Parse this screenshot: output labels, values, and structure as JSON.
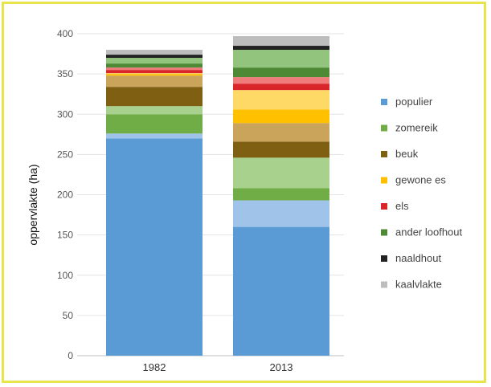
{
  "chart_data": {
    "type": "bar",
    "stacked": true,
    "ylabel": "oppervlakte (ha)",
    "ylim": [
      0,
      400
    ],
    "yticks": [
      0,
      50,
      100,
      150,
      200,
      250,
      300,
      350,
      400
    ],
    "categories": [
      "1982",
      "2013"
    ],
    "grid": true,
    "legend_position": "right",
    "series": [
      {
        "name": "populier",
        "color": "#5b9bd5",
        "values": [
          270,
          160
        ]
      },
      {
        "name": "",
        "color": "#9fc3e9",
        "values": [
          6,
          33
        ]
      },
      {
        "name": "zomereik",
        "color": "#70ad47",
        "values": [
          24,
          15
        ]
      },
      {
        "name": "",
        "color": "#a9d18e",
        "values": [
          10,
          38
        ]
      },
      {
        "name": "beuk",
        "color": "#7f5f12",
        "values": [
          24,
          20
        ]
      },
      {
        "name": "",
        "color": "#c9a45a",
        "values": [
          14,
          23
        ]
      },
      {
        "name": "gewone es",
        "color": "#ffc000",
        "values": [
          2,
          17
        ]
      },
      {
        "name": "",
        "color": "#ffd966",
        "values": [
          1,
          24
        ]
      },
      {
        "name": "els",
        "color": "#d9262b",
        "values": [
          4,
          8
        ]
      },
      {
        "name": "",
        "color": "#ef7b7b",
        "values": [
          3,
          8
        ]
      },
      {
        "name": "ander loofhout",
        "color": "#4e8a35",
        "values": [
          5,
          12
        ]
      },
      {
        "name": "",
        "color": "#93c47d",
        "values": [
          7,
          22
        ]
      },
      {
        "name": "naaldhout",
        "color": "#222222",
        "values": [
          4,
          5
        ]
      },
      {
        "name": "kaalvlakte",
        "color": "#bdbdbd",
        "values": [
          6,
          12
        ]
      }
    ]
  }
}
